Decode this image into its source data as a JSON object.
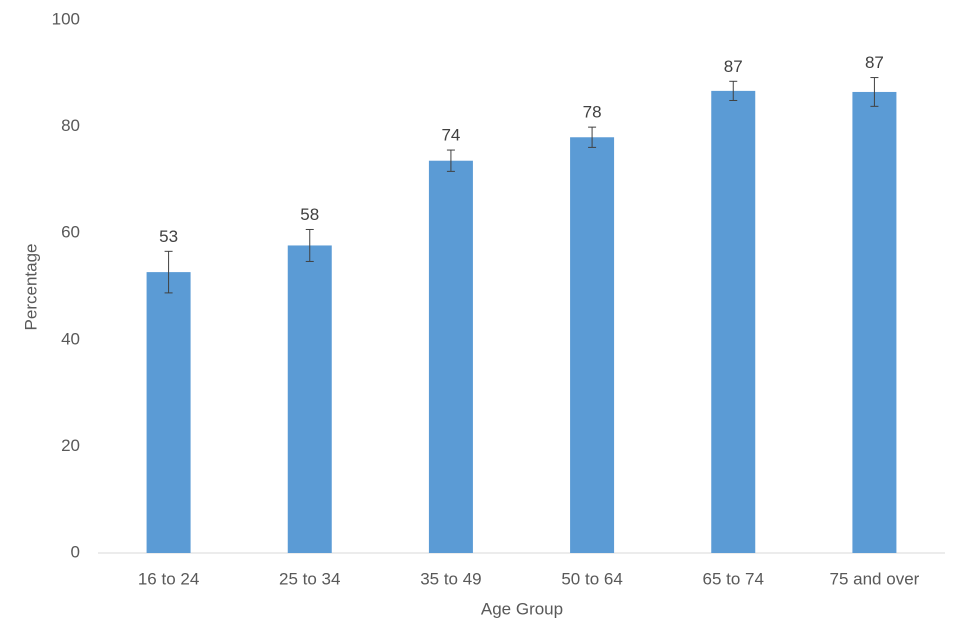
{
  "chart_data": {
    "type": "bar",
    "xlabel": "Age Group",
    "ylabel": "Percentage",
    "categories": [
      "16 to 24",
      "25 to 34",
      "35 to 49",
      "50 to 64",
      "65 to 74",
      "75 and over"
    ],
    "values": [
      52.7,
      57.7,
      73.6,
      78.0,
      86.7,
      86.5
    ],
    "value_labels": [
      "53",
      "58",
      "74",
      "78",
      "87",
      "87"
    ],
    "errors": [
      3.9,
      3.0,
      2.0,
      1.9,
      1.8,
      2.7
    ],
    "color": "#5b9bd5",
    "ylim": [
      0,
      100
    ],
    "yticks": [
      0,
      20,
      40,
      60,
      80,
      100
    ],
    "grid": false
  }
}
